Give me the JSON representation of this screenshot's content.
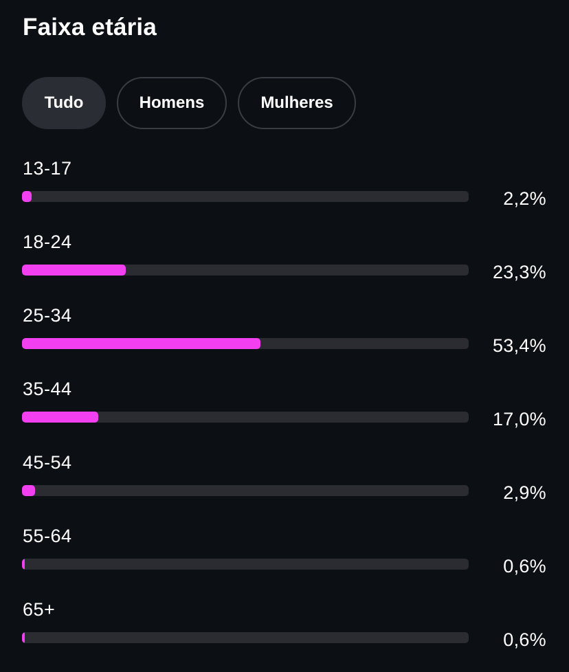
{
  "title": "Faixa etária",
  "tabs": [
    {
      "label": "Tudo",
      "active": true
    },
    {
      "label": "Homens",
      "active": false
    },
    {
      "label": "Mulheres",
      "active": false
    }
  ],
  "accent_color": "#f23ff0",
  "age_groups": [
    {
      "label": "13-17",
      "value_text": "2,2%",
      "percent": 2.2
    },
    {
      "label": "18-24",
      "value_text": "23,3%",
      "percent": 23.3
    },
    {
      "label": "25-34",
      "value_text": "53,4%",
      "percent": 53.4
    },
    {
      "label": "35-44",
      "value_text": "17,0%",
      "percent": 17.0
    },
    {
      "label": "45-54",
      "value_text": "2,9%",
      "percent": 2.9
    },
    {
      "label": "55-64",
      "value_text": "0,6%",
      "percent": 0.6
    },
    {
      "label": "65+",
      "value_text": "0,6%",
      "percent": 0.6
    }
  ]
}
